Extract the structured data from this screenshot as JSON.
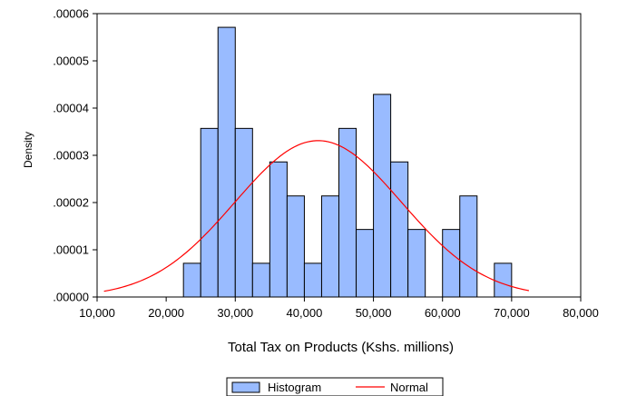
{
  "chart_data": {
    "type": "bar",
    "xlabel": "Total Tax on Products (Kshs. millions)",
    "ylabel": "Density",
    "xlim": [
      10000,
      80000
    ],
    "ylim": [
      0,
      6e-05
    ],
    "x_ticks": [
      10000,
      20000,
      30000,
      40000,
      50000,
      60000,
      70000,
      80000
    ],
    "x_tick_labels": [
      "10,000",
      "20,000",
      "30,000",
      "40,000",
      "50,000",
      "60,000",
      "70,000",
      "80,000"
    ],
    "y_ticks": [
      0,
      1e-05,
      2e-05,
      3e-05,
      4e-05,
      5e-05,
      6e-05
    ],
    "y_tick_labels": [
      ".00000",
      ".00001",
      ".00002",
      ".00003",
      ".00004",
      ".00005",
      ".00006"
    ],
    "grid": false,
    "legend_position": "bottom-center",
    "bin_width": 2500,
    "series": [
      {
        "name": "Histogram",
        "color": "#99bbff",
        "edge_color": "#000000",
        "bins": [
          {
            "start": 22500,
            "end": 25000,
            "value": 7.14e-06
          },
          {
            "start": 25000,
            "end": 27500,
            "value": 3.57e-05
          },
          {
            "start": 27500,
            "end": 30000,
            "value": 5.71e-05
          },
          {
            "start": 30000,
            "end": 32500,
            "value": 3.57e-05
          },
          {
            "start": 32500,
            "end": 35000,
            "value": 7.14e-06
          },
          {
            "start": 35000,
            "end": 37500,
            "value": 2.86e-05
          },
          {
            "start": 37500,
            "end": 40000,
            "value": 2.14e-05
          },
          {
            "start": 40000,
            "end": 42500,
            "value": 7.14e-06
          },
          {
            "start": 42500,
            "end": 45000,
            "value": 2.14e-05
          },
          {
            "start": 45000,
            "end": 47500,
            "value": 3.57e-05
          },
          {
            "start": 47500,
            "end": 50000,
            "value": 1.43e-05
          },
          {
            "start": 50000,
            "end": 52500,
            "value": 4.29e-05
          },
          {
            "start": 52500,
            "end": 55000,
            "value": 2.86e-05
          },
          {
            "start": 55000,
            "end": 57500,
            "value": 1.43e-05
          },
          {
            "start": 60000,
            "end": 62500,
            "value": 1.43e-05
          },
          {
            "start": 62500,
            "end": 65000,
            "value": 2.14e-05
          },
          {
            "start": 67500,
            "end": 70000,
            "value": 7.14e-06
          }
        ]
      },
      {
        "name": "Normal",
        "color": "#ff0000",
        "x_range": [
          11000,
          72500
        ],
        "mean": 42000,
        "std": 12050
      }
    ]
  }
}
